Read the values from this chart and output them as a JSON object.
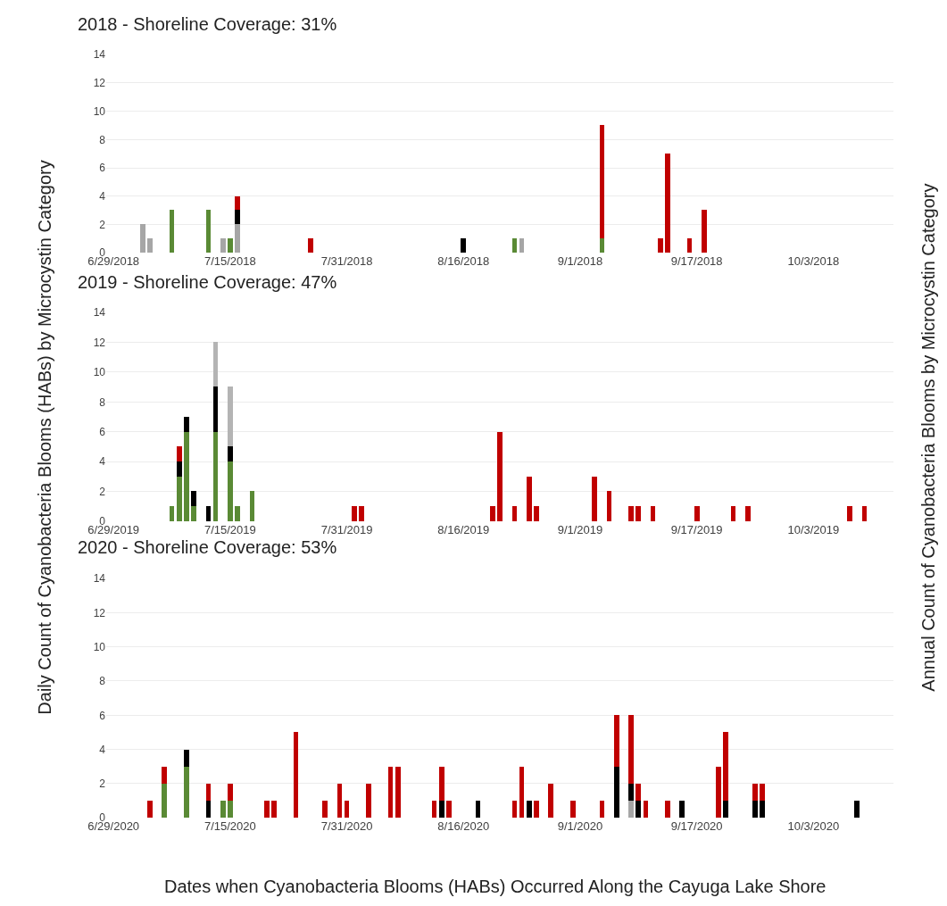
{
  "chart_data": [
    {
      "type": "bar",
      "stacked": true,
      "title": "2018 - Shoreline Coverage: 31%",
      "grid": "y",
      "x": [
        "2018-07-03",
        "2018-07-04",
        "2018-07-07",
        "2018-07-12",
        "2018-07-14",
        "2018-07-15",
        "2018-07-16",
        "2018-07-26",
        "2018-08-16",
        "2018-08-23",
        "2018-08-24",
        "2018-09-04",
        "2018-09-12",
        "2018-09-13",
        "2018-09-16",
        "2018-09-18"
      ],
      "xlim": [
        "2018-06-28",
        "2018-10-14"
      ],
      "xticks": [
        {
          "value": "2018-06-29",
          "label": "6/29/2018"
        },
        {
          "value": "2018-07-15",
          "label": "7/15/2018"
        },
        {
          "value": "2018-07-31",
          "label": "7/31/2018"
        },
        {
          "value": "2018-08-16",
          "label": "8/16/2018"
        },
        {
          "value": "2018-09-01",
          "label": "9/1/2018"
        },
        {
          "value": "2018-09-17",
          "label": "9/17/2018"
        },
        {
          "value": "2018-10-03",
          "label": "10/3/2018"
        }
      ],
      "ylim": [
        0,
        14
      ],
      "yticks": [
        0,
        2,
        4,
        6,
        8,
        10,
        12,
        14
      ],
      "series": [
        {
          "color": "#5a8a35",
          "values": [
            null,
            null,
            3,
            3,
            null,
            1,
            null,
            null,
            null,
            1,
            null,
            1,
            null,
            null,
            null,
            null
          ]
        },
        {
          "color": "#a6a6a6",
          "values": [
            2,
            1,
            null,
            null,
            1,
            null,
            2,
            null,
            null,
            null,
            1,
            null,
            null,
            null,
            null,
            null
          ]
        },
        {
          "color": "#000000",
          "values": [
            null,
            null,
            null,
            null,
            null,
            null,
            1,
            null,
            1,
            null,
            null,
            null,
            null,
            null,
            null,
            null
          ]
        },
        {
          "color": "#c00000",
          "values": [
            null,
            null,
            null,
            null,
            null,
            null,
            1,
            1,
            null,
            null,
            null,
            8,
            1,
            7,
            1,
            3
          ]
        }
      ]
    },
    {
      "type": "bar",
      "stacked": true,
      "title": "2019 - Shoreline Coverage: 47%",
      "ylabel": "Daily Count of Cyanobacteria Blooms (HABs) by Microcystin Category",
      "annotations": [
        "Annual Count of Cyanobacteria Blooms by Microcystin Category"
      ],
      "grid": "y",
      "x": [
        "2019-07-07",
        "2019-07-08",
        "2019-07-09",
        "2019-07-10",
        "2019-07-12",
        "2019-07-13",
        "2019-07-15",
        "2019-07-16",
        "2019-07-18",
        "2019-08-01",
        "2019-08-02",
        "2019-08-20",
        "2019-08-21",
        "2019-08-23",
        "2019-08-25",
        "2019-08-26",
        "2019-09-03",
        "2019-09-05",
        "2019-09-08",
        "2019-09-09",
        "2019-09-11",
        "2019-09-17",
        "2019-09-22",
        "2019-09-24",
        "2019-10-08",
        "2019-10-10"
      ],
      "xlim": [
        "2019-06-28",
        "2019-10-14"
      ],
      "xticks": [
        {
          "value": "2019-06-29",
          "label": "6/29/2019"
        },
        {
          "value": "2019-07-15",
          "label": "7/15/2019"
        },
        {
          "value": "2019-07-31",
          "label": "7/31/2019"
        },
        {
          "value": "2019-08-16",
          "label": "8/16/2019"
        },
        {
          "value": "2019-09-01",
          "label": "9/1/2019"
        },
        {
          "value": "2019-09-17",
          "label": "9/17/2019"
        },
        {
          "value": "2019-10-03",
          "label": "10/3/2019"
        }
      ],
      "ylim": [
        0,
        14
      ],
      "yticks": [
        0,
        2,
        4,
        6,
        8,
        10,
        12,
        14
      ],
      "series": [
        {
          "color": "#5a8a35",
          "values": [
            1,
            3,
            6,
            1,
            null,
            6,
            4,
            1,
            2,
            null,
            null,
            null,
            null,
            null,
            null,
            null,
            null,
            null,
            null,
            null,
            null,
            null,
            null,
            null,
            null,
            null
          ]
        },
        {
          "color": "#000000",
          "values": [
            null,
            1,
            1,
            1,
            1,
            3,
            1,
            null,
            null,
            null,
            null,
            null,
            null,
            null,
            null,
            null,
            null,
            null,
            null,
            null,
            null,
            null,
            null,
            null,
            null,
            null
          ]
        },
        {
          "color": "#c00000",
          "values": [
            null,
            1,
            null,
            null,
            null,
            null,
            null,
            null,
            null,
            1,
            1,
            1,
            6,
            1,
            3,
            1,
            3,
            2,
            1,
            1,
            1,
            1,
            1,
            1,
            1,
            1
          ]
        },
        {
          "color": "#b4b4b4",
          "values": [
            null,
            null,
            null,
            null,
            null,
            3,
            4,
            null,
            null,
            null,
            null,
            null,
            null,
            null,
            null,
            null,
            null,
            null,
            null,
            null,
            null,
            null,
            null,
            null,
            null,
            null
          ]
        }
      ]
    },
    {
      "type": "bar",
      "stacked": true,
      "title": "2020 - Shoreline Coverage: 53%",
      "xlabel": "Dates when Cyanobacteria Blooms (HABs) Occurred Along the Cayuga Lake Shore",
      "grid": "y",
      "x": [
        "2020-07-04",
        "2020-07-06",
        "2020-07-09",
        "2020-07-12",
        "2020-07-14",
        "2020-07-15",
        "2020-07-20",
        "2020-07-21",
        "2020-07-24",
        "2020-07-28",
        "2020-07-30",
        "2020-07-31",
        "2020-08-03",
        "2020-08-06",
        "2020-08-07",
        "2020-08-12",
        "2020-08-13",
        "2020-08-14",
        "2020-08-18",
        "2020-08-23",
        "2020-08-24",
        "2020-08-25",
        "2020-08-26",
        "2020-08-28",
        "2020-08-31",
        "2020-09-04",
        "2020-09-06",
        "2020-09-08",
        "2020-09-09",
        "2020-09-10",
        "2020-09-13",
        "2020-09-15",
        "2020-09-20",
        "2020-09-21",
        "2020-09-25",
        "2020-09-26",
        "2020-10-09"
      ],
      "xlim": [
        "2020-06-28",
        "2020-10-14"
      ],
      "xticks": [
        {
          "value": "2020-06-29",
          "label": "6/29/2020"
        },
        {
          "value": "2020-07-15",
          "label": "7/15/2020"
        },
        {
          "value": "2020-07-31",
          "label": "7/31/2020"
        },
        {
          "value": "2020-08-16",
          "label": "8/16/2020"
        },
        {
          "value": "2020-09-01",
          "label": "9/1/2020"
        },
        {
          "value": "2020-09-17",
          "label": "9/17/2020"
        },
        {
          "value": "2020-10-03",
          "label": "10/3/2020"
        }
      ],
      "ylim": [
        0,
        14
      ],
      "yticks": [
        0,
        2,
        4,
        6,
        8,
        10,
        12,
        14
      ],
      "series": [
        {
          "color": "#5a8a35",
          "values": [
            null,
            2,
            3,
            null,
            1,
            1,
            null,
            null,
            null,
            null,
            null,
            null,
            null,
            null,
            null,
            null,
            null,
            null,
            null,
            null,
            null,
            null,
            null,
            null,
            null,
            null,
            null,
            null,
            null,
            null,
            null,
            null,
            null,
            null,
            null,
            null,
            null
          ]
        },
        {
          "color": "#a6a6a6",
          "values": [
            null,
            null,
            null,
            null,
            null,
            null,
            null,
            null,
            null,
            null,
            null,
            null,
            null,
            null,
            null,
            null,
            null,
            null,
            null,
            null,
            null,
            null,
            null,
            null,
            null,
            null,
            null,
            1,
            null,
            null,
            null,
            null,
            null,
            null,
            null,
            null,
            null
          ]
        },
        {
          "color": "#000000",
          "values": [
            null,
            null,
            1,
            1,
            null,
            null,
            null,
            null,
            null,
            null,
            null,
            null,
            null,
            null,
            null,
            null,
            1,
            null,
            1,
            null,
            null,
            1,
            null,
            null,
            null,
            null,
            3,
            1,
            1,
            null,
            null,
            1,
            null,
            1,
            1,
            1,
            1
          ]
        },
        {
          "color": "#c00000",
          "values": [
            1,
            1,
            null,
            1,
            null,
            1,
            1,
            1,
            5,
            1,
            2,
            1,
            2,
            3,
            3,
            1,
            2,
            1,
            null,
            1,
            3,
            null,
            1,
            2,
            1,
            1,
            3,
            4,
            1,
            1,
            1,
            null,
            3,
            4,
            1,
            1,
            null
          ]
        }
      ]
    }
  ]
}
